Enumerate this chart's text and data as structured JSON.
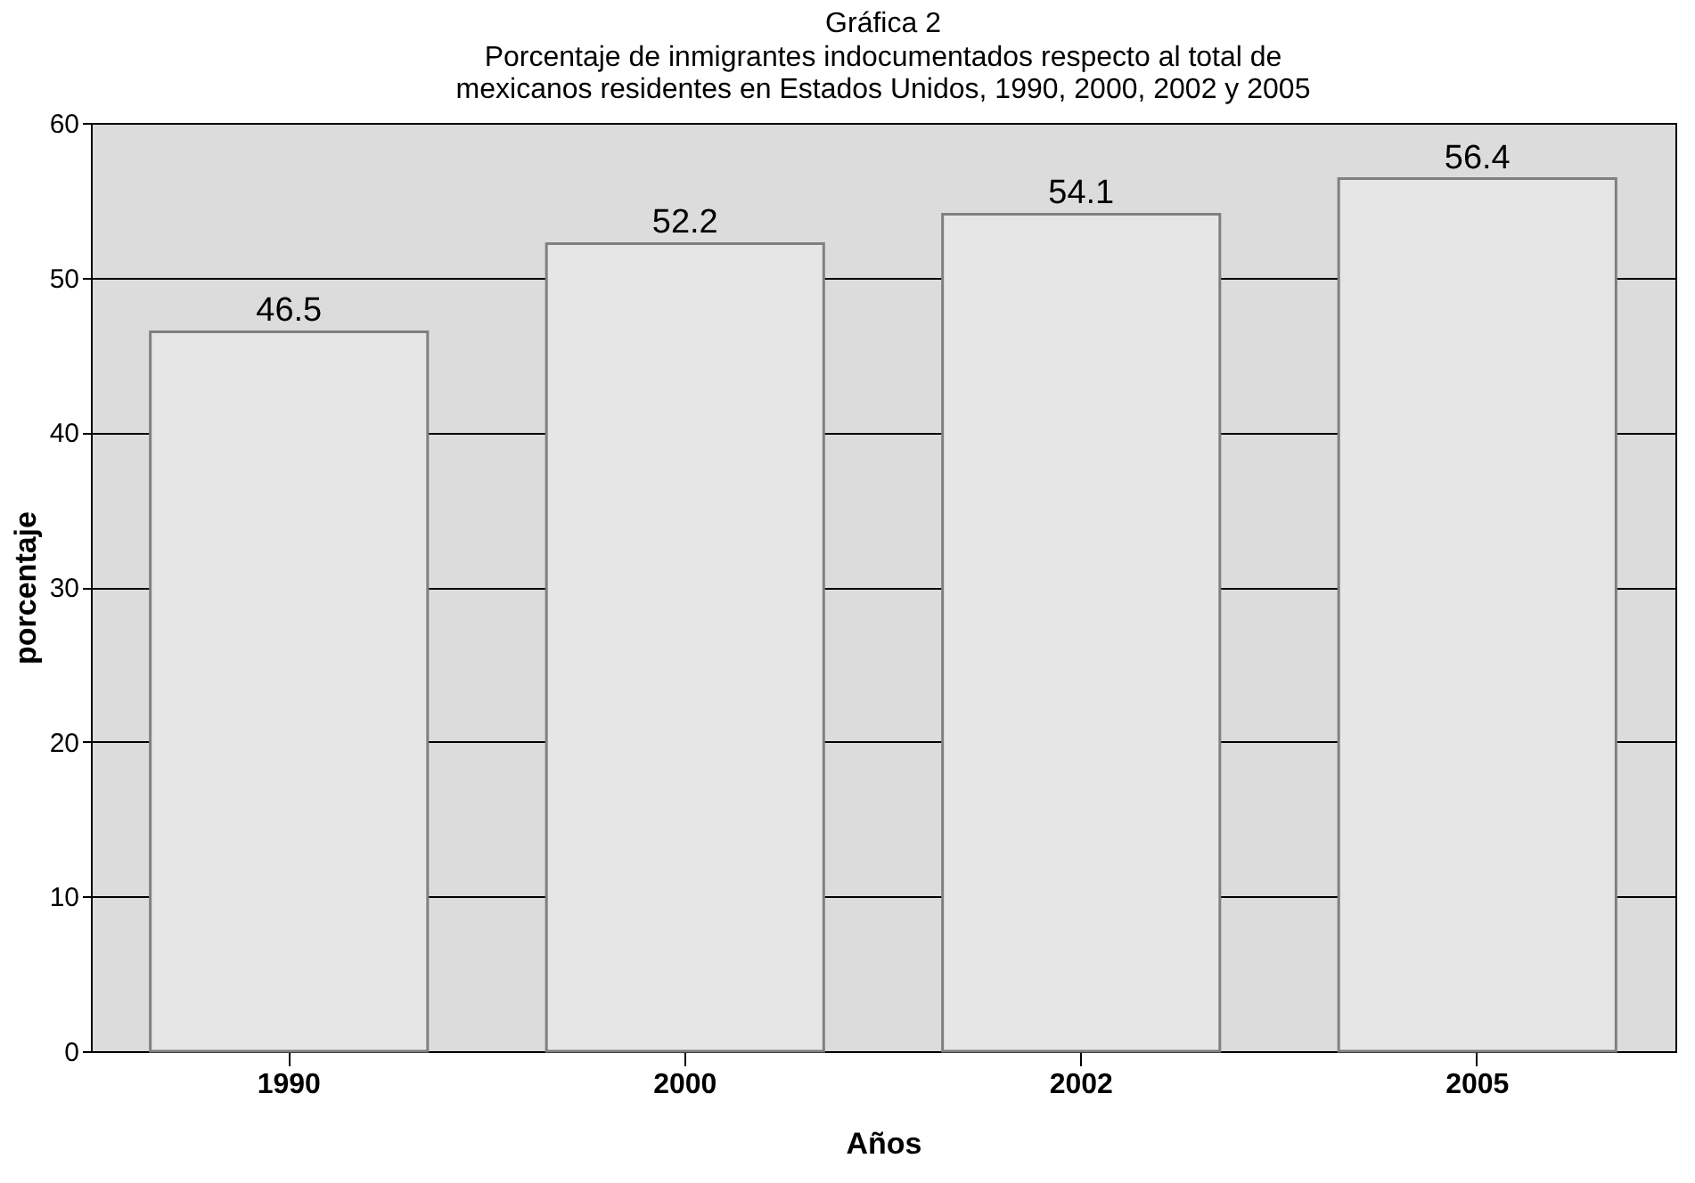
{
  "chart_data": {
    "type": "bar",
    "title": "Gráfica 2",
    "subtitle": "Porcentaje de inmigrantes indocumentados respecto al total de mexicanos residentes en Estados Unidos, 1990, 2000, 2002 y 2005",
    "xlabel": "Años",
    "ylabel": "porcentaje",
    "categories": [
      "1990",
      "2000",
      "2002",
      "2005"
    ],
    "values": [
      46.5,
      52.2,
      54.1,
      56.4
    ],
    "color": "#e6e6e6",
    "ylim": [
      0,
      60
    ],
    "yticks": [
      0,
      10,
      20,
      30,
      40,
      50,
      60
    ],
    "grid": "y",
    "data_labels": true
  }
}
